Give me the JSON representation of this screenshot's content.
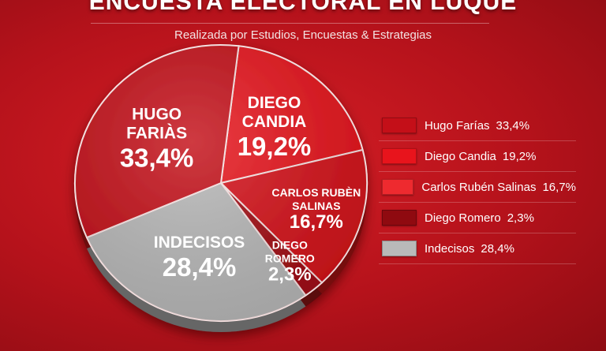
{
  "header": {
    "title": "ENCUESTA ELECTORAL EN LUQUE",
    "subtitle": "Realizada por Estudios, Encuestas & Estrategias"
  },
  "chart_data": {
    "type": "pie",
    "title": "ENCUESTA ELECTORAL EN LUQUE",
    "subtitle": "Realizada por Estudios, Encuestas & Estrategias",
    "legend_position": "right",
    "slices": [
      {
        "label": "Diego Candia",
        "pie_label": [
          "DIEGO",
          "CANDIA"
        ],
        "value": 19.2,
        "value_label": "19,2%",
        "legend_label": "Diego Candia",
        "color": "#e8141c"
      },
      {
        "label": "Carlos Rubén Salinas",
        "pie_label": [
          "CARLOS RUBÈN",
          "SALINAS"
        ],
        "value": 16.7,
        "value_label": "16,7%",
        "legend_label": "Carlos Rubén Salinas",
        "color": "#d6121a"
      },
      {
        "label": "Diego Romero",
        "pie_label": [
          "DIEGO",
          "ROMERO"
        ],
        "value": 2.3,
        "value_label": "2,3%",
        "legend_label": "Diego Romero",
        "color": "#a30d14"
      },
      {
        "label": "Indecisos",
        "pie_label": [
          "INDECISOS"
        ],
        "value": 28.4,
        "value_label": "28,4%",
        "legend_label": "Indecisos",
        "color": "#b9b9b9"
      },
      {
        "label": "Hugo Farías",
        "pie_label": [
          "HUGO",
          "FARIÀS"
        ],
        "value": 33.4,
        "value_label": "33,4%",
        "legend_label": "Hugo Farías",
        "color": "#c40f18"
      }
    ],
    "legend": [
      {
        "name": "Hugo Farías",
        "value": "33,4%",
        "color": "#c40f18"
      },
      {
        "name": "Diego Candia",
        "value": "19,2%",
        "color": "#e8141c"
      },
      {
        "name": "Carlos Rubén Salinas",
        "value": "16,7%",
        "color": "#ee2a2f"
      },
      {
        "name": "Diego Romero",
        "value": "2,3%",
        "color": "#8f0a10"
      },
      {
        "name": "Indecisos",
        "value": "28,4%",
        "color": "#b9b9b9"
      }
    ]
  }
}
